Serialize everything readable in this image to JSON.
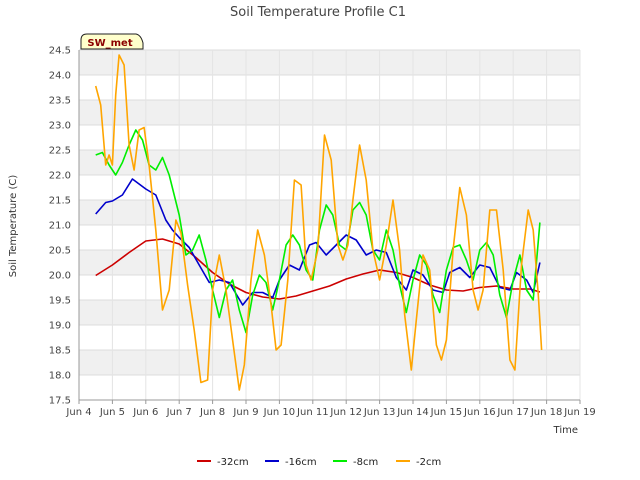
{
  "chart_data": {
    "type": "line",
    "title": "Soil Temperature Profile C1",
    "xlabel": "Time",
    "ylabel": "Soil Temperature (C)",
    "badge": "SW_met",
    "x_ticks": [
      "Jun 4",
      "Jun 5",
      "Jun 6",
      "Jun 7",
      "Jun 8",
      "Jun 9",
      "Jun 10",
      "Jun 11",
      "Jun 12",
      "Jun 13",
      "Jun 14",
      "Jun 15",
      "Jun 16",
      "Jun 17",
      "Jun 18",
      "Jun 19"
    ],
    "xlim": [
      4,
      19
    ],
    "ylim": [
      17.5,
      24.5
    ],
    "y_ticks": [
      17.5,
      18.0,
      18.5,
      19.0,
      19.5,
      20.0,
      20.5,
      21.0,
      21.5,
      22.0,
      22.5,
      23.0,
      23.5,
      24.0,
      24.5
    ],
    "grid": true,
    "legend_position": "bottom",
    "series": [
      {
        "name": "-32cm",
        "color": "#cc0000",
        "x": [
          4.5,
          5.0,
          5.5,
          6.0,
          6.5,
          7.0,
          7.5,
          8.0,
          8.5,
          9.0,
          9.5,
          10.0,
          10.5,
          11.0,
          11.5,
          12.0,
          12.5,
          13.0,
          13.5,
          14.0,
          14.5,
          15.0,
          15.5,
          16.0,
          16.5,
          17.0,
          17.5,
          17.8
        ],
        "y": [
          19.99,
          20.2,
          20.45,
          20.68,
          20.72,
          20.62,
          20.35,
          20.05,
          19.82,
          19.65,
          19.56,
          19.52,
          19.58,
          19.68,
          19.78,
          19.92,
          20.02,
          20.1,
          20.05,
          19.95,
          19.8,
          19.7,
          19.68,
          19.75,
          19.78,
          19.72,
          19.72,
          19.66
        ]
      },
      {
        "name": "-16cm",
        "color": "#0000cc",
        "x": [
          4.5,
          4.8,
          5.0,
          5.3,
          5.6,
          5.8,
          6.0,
          6.3,
          6.6,
          6.8,
          7.0,
          7.3,
          7.6,
          7.9,
          8.2,
          8.5,
          8.9,
          9.2,
          9.5,
          9.8,
          10.0,
          10.3,
          10.6,
          10.9,
          11.1,
          11.4,
          11.7,
          12.0,
          12.3,
          12.6,
          12.9,
          13.2,
          13.5,
          13.8,
          14.0,
          14.3,
          14.6,
          14.9,
          15.1,
          15.4,
          15.7,
          16.0,
          16.3,
          16.6,
          16.9,
          17.1,
          17.4,
          17.6,
          17.8
        ],
        "y": [
          21.22,
          21.45,
          21.48,
          21.6,
          21.92,
          21.82,
          21.72,
          21.6,
          21.1,
          20.9,
          20.75,
          20.55,
          20.2,
          19.85,
          19.9,
          19.85,
          19.4,
          19.65,
          19.65,
          19.55,
          19.9,
          20.2,
          20.1,
          20.6,
          20.65,
          20.4,
          20.6,
          20.8,
          20.7,
          20.4,
          20.5,
          20.45,
          19.95,
          19.7,
          20.1,
          20.0,
          19.7,
          19.65,
          20.05,
          20.15,
          19.95,
          20.2,
          20.15,
          19.75,
          19.7,
          20.05,
          19.9,
          19.65,
          20.25
        ]
      },
      {
        "name": "-8cm",
        "color": "#00ee00",
        "x": [
          4.5,
          4.7,
          4.9,
          5.1,
          5.3,
          5.5,
          5.7,
          5.9,
          6.1,
          6.3,
          6.5,
          6.7,
          7.0,
          7.2,
          7.4,
          7.6,
          7.8,
          8.0,
          8.2,
          8.4,
          8.6,
          8.8,
          9.0,
          9.2,
          9.4,
          9.6,
          9.8,
          10.0,
          10.2,
          10.4,
          10.6,
          10.8,
          11.0,
          11.2,
          11.4,
          11.6,
          11.8,
          12.0,
          12.2,
          12.4,
          12.6,
          12.8,
          13.0,
          13.2,
          13.4,
          13.6,
          13.8,
          14.0,
          14.2,
          14.4,
          14.6,
          14.8,
          15.0,
          15.2,
          15.4,
          15.6,
          15.8,
          16.0,
          16.2,
          16.4,
          16.6,
          16.8,
          17.0,
          17.2,
          17.4,
          17.6,
          17.8
        ],
        "y": [
          22.4,
          22.45,
          22.2,
          22.0,
          22.25,
          22.6,
          22.9,
          22.7,
          22.2,
          22.1,
          22.35,
          22.0,
          21.2,
          20.4,
          20.5,
          20.8,
          20.3,
          19.7,
          19.15,
          19.7,
          19.9,
          19.3,
          18.85,
          19.6,
          20.0,
          19.85,
          19.3,
          19.9,
          20.6,
          20.8,
          20.6,
          20.1,
          19.9,
          20.9,
          21.4,
          21.2,
          20.6,
          20.5,
          21.3,
          21.45,
          21.2,
          20.5,
          20.3,
          20.9,
          20.5,
          19.8,
          19.25,
          19.9,
          20.4,
          20.2,
          19.6,
          19.25,
          20.1,
          20.55,
          20.6,
          20.3,
          19.9,
          20.5,
          20.65,
          20.4,
          19.6,
          19.15,
          19.9,
          20.4,
          19.7,
          19.5,
          21.05
        ]
      },
      {
        "name": "-2cm",
        "color": "#ffa500",
        "x": [
          4.5,
          4.65,
          4.8,
          4.9,
          5.0,
          5.1,
          5.2,
          5.35,
          5.5,
          5.65,
          5.8,
          5.95,
          6.1,
          6.3,
          6.5,
          6.7,
          6.9,
          7.05,
          7.25,
          7.45,
          7.65,
          7.85,
          8.0,
          8.2,
          8.4,
          8.6,
          8.8,
          8.95,
          9.15,
          9.35,
          9.55,
          9.75,
          9.9,
          10.05,
          10.25,
          10.45,
          10.65,
          10.8,
          10.95,
          11.15,
          11.35,
          11.55,
          11.75,
          11.9,
          12.05,
          12.2,
          12.4,
          12.6,
          12.8,
          13.0,
          13.2,
          13.4,
          13.6,
          13.75,
          13.95,
          14.1,
          14.3,
          14.5,
          14.7,
          14.85,
          15.0,
          15.2,
          15.4,
          15.6,
          15.8,
          15.95,
          16.1,
          16.3,
          16.5,
          16.7,
          16.9,
          17.05,
          17.25,
          17.45,
          17.6,
          17.75,
          17.85
        ],
        "y": [
          23.78,
          23.4,
          22.2,
          22.4,
          22.2,
          23.6,
          24.4,
          24.2,
          22.6,
          22.1,
          22.9,
          22.95,
          22.2,
          20.9,
          19.3,
          19.7,
          21.1,
          20.85,
          19.8,
          18.9,
          17.85,
          17.9,
          19.7,
          20.4,
          19.7,
          18.7,
          17.7,
          18.2,
          19.9,
          20.9,
          20.4,
          19.4,
          18.5,
          18.6,
          19.9,
          21.9,
          21.8,
          20.2,
          19.9,
          20.5,
          22.8,
          22.3,
          20.6,
          20.3,
          20.6,
          21.5,
          22.6,
          21.9,
          20.5,
          19.9,
          20.6,
          21.5,
          20.5,
          19.2,
          18.1,
          19.1,
          20.4,
          20.1,
          18.6,
          18.3,
          18.7,
          20.5,
          21.75,
          21.2,
          19.7,
          19.3,
          19.7,
          21.3,
          21.3,
          20.1,
          18.3,
          18.1,
          20.2,
          21.3,
          20.9,
          19.6,
          18.5
        ]
      }
    ]
  }
}
